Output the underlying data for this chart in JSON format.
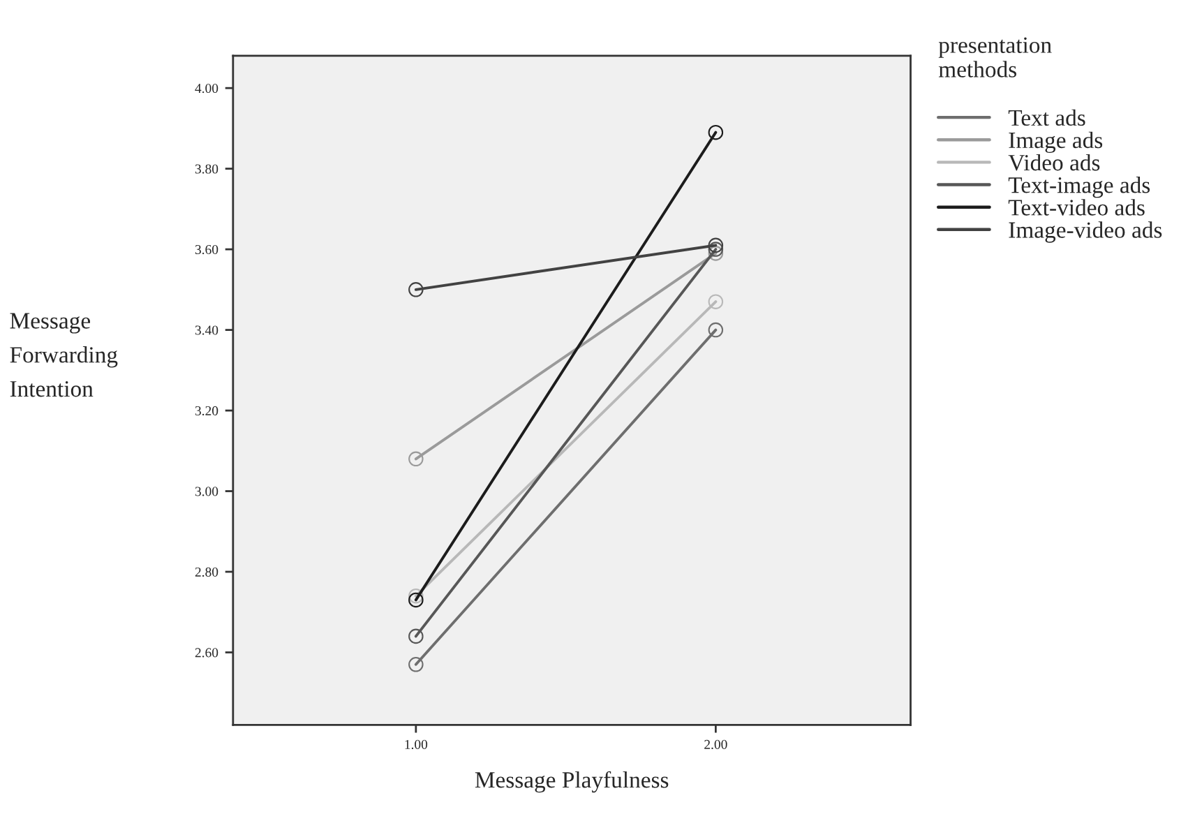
{
  "chart_data": {
    "type": "line",
    "xlabel": "Message Playfulness",
    "ylabel": "Message\nForwarding\nIntention",
    "legend_title": "presentation\nmethods",
    "x": [
      1,
      2
    ],
    "series": [
      {
        "name": "Text ads",
        "color": "#6e6e6e",
        "values": [
          2.57,
          3.4
        ]
      },
      {
        "name": "Image ads",
        "color": "#9a9a9a",
        "values": [
          3.08,
          3.59
        ]
      },
      {
        "name": "Video ads",
        "color": "#b8b8b8",
        "values": [
          2.74,
          3.47
        ]
      },
      {
        "name": "Text-image ads",
        "color": "#575757",
        "values": [
          2.64,
          3.6
        ]
      },
      {
        "name": "Text-video ads",
        "color": "#1c1c1c",
        "values": [
          2.73,
          3.89
        ]
      },
      {
        "name": "Image-video ads",
        "color": "#424242",
        "values": [
          3.5,
          3.61
        ]
      }
    ],
    "xlim": [
      0.39,
      2.65
    ],
    "xticks": [
      {
        "value": 1,
        "label": "1.00"
      },
      {
        "value": 2,
        "label": "2.00"
      }
    ],
    "ylim": [
      2.42,
      4.08
    ],
    "yticks": [
      {
        "value": 2.6,
        "label": "2.60"
      },
      {
        "value": 2.8,
        "label": "2.80"
      },
      {
        "value": 3.0,
        "label": "3.00"
      },
      {
        "value": 3.2,
        "label": "3.20"
      },
      {
        "value": 3.4,
        "label": "3.40"
      },
      {
        "value": 3.6,
        "label": "3.60"
      },
      {
        "value": 3.8,
        "label": "3.80"
      },
      {
        "value": 4.0,
        "label": "4.00"
      }
    ],
    "marker": "circle",
    "line_style": "solid",
    "legend": "right",
    "grid": false
  }
}
